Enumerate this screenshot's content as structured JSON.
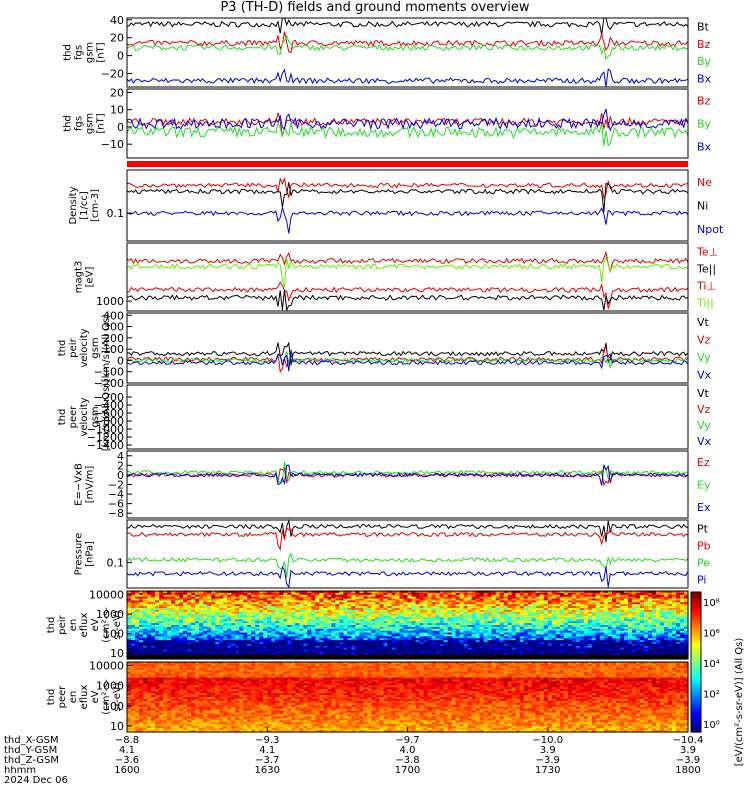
{
  "title": "P3 (TH-D) fields and ground moments overview",
  "colors": {
    "black": "#000000",
    "red": "#e00000",
    "green": "#22dd22",
    "blue": "#0000dd",
    "lightgreen": "#66ee00"
  },
  "chart_data": [
    {
      "type": "line",
      "name_lines": [
        "thd",
        "fgs",
        "gsm",
        "[nT]"
      ],
      "ylim": [
        -35,
        42
      ],
      "yticks": [
        "40",
        "20",
        "0",
        "−20"
      ],
      "ytick_vals": [
        40,
        20,
        0,
        -20
      ],
      "series": [
        {
          "name": "Bt",
          "base": 35,
          "noise": 3
        },
        {
          "name": "Bz",
          "base": 14,
          "noise": 3
        },
        {
          "name": "By",
          "base": 9,
          "noise": 3
        },
        {
          "name": "Bx",
          "base": -28,
          "noise": 3
        }
      ]
    },
    {
      "type": "line",
      "name_lines": [
        "thd",
        "fgs",
        "gsm",
        "[nT]"
      ],
      "ylim": [
        -18,
        22
      ],
      "yticks": [
        "20",
        "10",
        "0",
        "−10"
      ],
      "ytick_vals": [
        20,
        10,
        0,
        -10
      ],
      "series": [
        {
          "name": "Bz",
          "base": 3,
          "noise": 2
        },
        {
          "name": "By",
          "base": -3,
          "noise": 3
        },
        {
          "name": "Bx",
          "base": 2,
          "noise": 3
        }
      ]
    },
    {
      "type": "line",
      "name_lines": [
        "Density",
        "[1/cc]",
        "[cm-3]"
      ],
      "log": true,
      "ylim": [
        0.02,
        1.2
      ],
      "yticks": [
        "0.1"
      ],
      "ytick_vals": [
        0.1
      ],
      "series": [
        {
          "name": "Ne",
          "base": 0.5
        },
        {
          "name": "Ni",
          "base": 0.35
        },
        {
          "name": "Npot",
          "base": 0.1
        }
      ]
    },
    {
      "type": "line",
      "name_lines": [
        "magt3",
        "[eV]"
      ],
      "log": true,
      "ylim": [
        600,
        20000
      ],
      "yticks": [
        "1000"
      ],
      "ytick_vals": [
        1000
      ],
      "series": [
        {
          "name": "Te⊥",
          "base": 1800
        },
        {
          "name": "Te||",
          "base": 1200
        },
        {
          "name": "Ti⊥",
          "base": 8000
        },
        {
          "name": "Ti||",
          "base": 6000
        }
      ]
    },
    {
      "type": "line",
      "name_lines": [
        "thd",
        "peir",
        "velocity",
        "gsm",
        "[km/s](All Qs)"
      ],
      "ylim": [
        -200,
        420
      ],
      "yticks": [
        "400",
        "300",
        "200",
        "100",
        "0",
        "−100",
        "−200"
      ],
      "ytick_vals": [
        400,
        300,
        200,
        100,
        0,
        -100,
        -200
      ],
      "series": [
        {
          "name": "Vt",
          "base": 60
        },
        {
          "name": "Vz",
          "base": 10
        },
        {
          "name": "Vy",
          "base": 0
        },
        {
          "name": "Vx",
          "base": -20
        }
      ]
    },
    {
      "type": "line",
      "name_lines": [
        "thd",
        "peer",
        "velocity",
        "gsm",
        "[km/s](All Qs)"
      ],
      "ylim": [
        -1500,
        100
      ],
      "yticks": [
        "−200",
        "−400",
        "−600",
        "−800",
        "−1000",
        "−1200",
        "−1400"
      ],
      "ytick_vals": [
        -200,
        -400,
        -600,
        -800,
        -1000,
        -1200,
        -1400
      ],
      "series": [
        {
          "name": "Vt"
        },
        {
          "name": "Vz"
        },
        {
          "name": "Vy"
        },
        {
          "name": "Vx"
        }
      ]
    },
    {
      "type": "line",
      "name_lines": [
        "E=−VxB",
        "[mV/m]"
      ],
      "ylim": [
        -9,
        5
      ],
      "yticks": [
        "4",
        "2",
        "0",
        "−2",
        "−4",
        "−6",
        "−8"
      ],
      "ytick_vals": [
        4,
        2,
        0,
        -2,
        -4,
        -6,
        -8
      ],
      "series": [
        {
          "name": "Ez",
          "base": 0
        },
        {
          "name": "Ey",
          "base": 0.5
        },
        {
          "name": "Ex",
          "base": 0
        }
      ]
    },
    {
      "type": "line",
      "name_lines": [
        "Pressure",
        "[nPa]"
      ],
      "log": true,
      "ylim": [
        0.02,
        1.5
      ],
      "yticks": [
        "0.1"
      ],
      "ytick_vals": [
        0.1
      ],
      "series": [
        {
          "name": "Pt",
          "base": 1.0
        },
        {
          "name": "Pb",
          "base": 0.6
        },
        {
          "name": "Pe",
          "base": 0.12
        },
        {
          "name": "Pi",
          "base": 0.05
        }
      ]
    },
    {
      "type": "heatmap",
      "name_lines": [
        "thd",
        "peir",
        "en",
        "eflux",
        "eV",
        "(cm²-s-",
        "sr-eV)"
      ],
      "log": true,
      "ylim": [
        5,
        15000
      ],
      "yticks": [
        "10000",
        "1000",
        "100",
        "10"
      ],
      "ytick_vals": [
        10000,
        1000,
        100,
        10
      ]
    },
    {
      "type": "heatmap",
      "name_lines": [
        "thd",
        "peer",
        "en",
        "eflux",
        "eV",
        "(cm²-s-",
        "sr-eV)"
      ],
      "log": true,
      "ylim": [
        5,
        15000
      ],
      "yticks": [
        "10000",
        "1000",
        "100",
        "10"
      ],
      "ytick_vals": [
        10000,
        1000,
        100,
        10
      ]
    }
  ],
  "colorbar": {
    "ticks": [
      "10⁸",
      "10⁶",
      "10⁴",
      "10²",
      "10⁰"
    ],
    "label": "[eV/(cm²-s-sr-eV)] (All Qs)"
  },
  "xaxis": {
    "rows": [
      {
        "label": "thd_X-GSM",
        "values": [
          "−8.8",
          "−9.3",
          "−9.7",
          "−10.0",
          "−10.4"
        ]
      },
      {
        "label": "thd_Y-GSM",
        "values": [
          "4.1",
          "4.1",
          "4.0",
          "3.9",
          "3.9"
        ]
      },
      {
        "label": "thd_Z-GSM",
        "values": [
          "−3.6",
          "−3.7",
          "−3.8",
          "−3.9",
          "−3.9"
        ]
      },
      {
        "label": "hhmm",
        "values": [
          "1600",
          "1630",
          "1700",
          "1730",
          "1800"
        ]
      }
    ],
    "date": "2024 Dec 06"
  }
}
